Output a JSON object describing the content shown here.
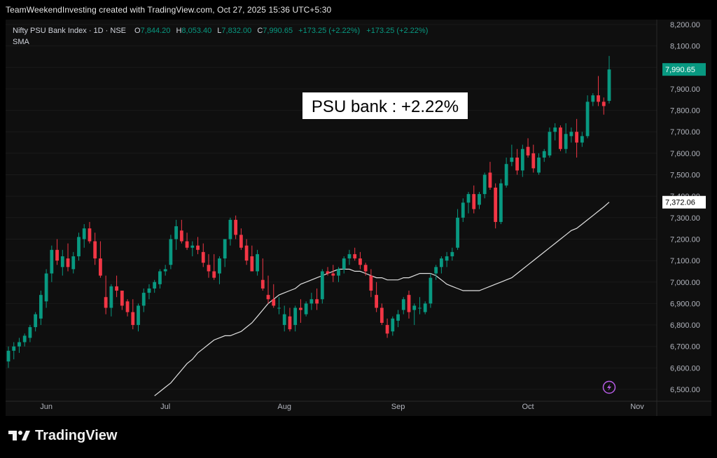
{
  "header": {
    "credit": "TeamWeekendInvesting created with TradingView.com, Oct 27, 2025 15:36 UTC+5:30"
  },
  "legend": {
    "symbol": "Nifty PSU Bank Index · 1D · NSE",
    "o_label": "O",
    "o_value": "7,844.20",
    "h_label": "H",
    "h_value": "8,053.40",
    "l_label": "L",
    "l_value": "7,832.00",
    "c_label": "C",
    "c_value": "7,990.65",
    "change": "+173.25 (+2.22%)",
    "change2": "+173.25 (+2.22%)",
    "indicator": "SMA"
  },
  "annotation": "PSU bank : +2.22%",
  "footer": {
    "brand": "TradingView"
  },
  "colors": {
    "up": "#089981",
    "down": "#f23645",
    "sma": "#e0e0e0",
    "price_badge": "#089981"
  },
  "chart_data": {
    "type": "candlestick",
    "ylim": [
      6450,
      8230
    ],
    "y_ticks": [
      "6,500.00",
      "6,600.00",
      "6,700.00",
      "6,800.00",
      "6,900.00",
      "7,000.00",
      "7,100.00",
      "7,200.00",
      "7,300.00",
      "7,400.00",
      "7,500.00",
      "7,600.00",
      "7,700.00",
      "7,800.00",
      "7,900.00",
      "8,000.00",
      "8,100.00",
      "8,200.00"
    ],
    "x_ticks": [
      "Jun",
      "Jul",
      "Aug",
      "Sep",
      "Oct",
      "Nov"
    ],
    "last_price_label": "7,990.65",
    "sma_label": "7,372.06",
    "candles": [
      [
        6630,
        6700,
        6600,
        6680
      ],
      [
        6680,
        6720,
        6640,
        6700
      ],
      [
        6700,
        6740,
        6670,
        6720
      ],
      [
        6720,
        6760,
        6700,
        6750
      ],
      [
        6740,
        6800,
        6720,
        6790
      ],
      [
        6790,
        6860,
        6770,
        6850
      ],
      [
        6830,
        6960,
        6800,
        6940
      ],
      [
        6910,
        7060,
        6880,
        7040
      ],
      [
        7040,
        7170,
        7000,
        7150
      ],
      [
        7150,
        7200,
        7080,
        7100
      ],
      [
        7070,
        7150,
        7030,
        7120
      ],
      [
        7110,
        7180,
        7050,
        7070
      ],
      [
        7060,
        7140,
        7040,
        7120
      ],
      [
        7120,
        7230,
        7100,
        7210
      ],
      [
        7200,
        7270,
        7160,
        7250
      ],
      [
        7250,
        7280,
        7180,
        7190
      ],
      [
        7190,
        7230,
        7080,
        7110
      ],
      [
        7110,
        7190,
        7020,
        7030
      ],
      [
        6930,
        7030,
        6850,
        6880
      ],
      [
        6880,
        6990,
        6840,
        6980
      ],
      [
        6980,
        7030,
        6930,
        6960
      ],
      [
        6960,
        6960,
        6870,
        6890
      ],
      [
        6910,
        6920,
        6840,
        6860
      ],
      [
        6860,
        6920,
        6780,
        6800
      ],
      [
        6800,
        6900,
        6770,
        6890
      ],
      [
        6890,
        6970,
        6860,
        6950
      ],
      [
        6950,
        6990,
        6920,
        6970
      ],
      [
        6970,
        7010,
        6950,
        7000
      ],
      [
        6990,
        7060,
        6970,
        7050
      ],
      [
        7050,
        7080,
        7030,
        7060
      ],
      [
        7080,
        7220,
        7060,
        7200
      ],
      [
        7200,
        7290,
        7150,
        7260
      ],
      [
        7240,
        7290,
        7180,
        7190
      ],
      [
        7190,
        7230,
        7150,
        7160
      ],
      [
        7160,
        7190,
        7120,
        7170
      ],
      [
        7170,
        7210,
        7130,
        7150
      ],
      [
        7140,
        7180,
        7070,
        7090
      ],
      [
        7080,
        7130,
        7020,
        7050
      ],
      [
        7050,
        7130,
        7010,
        7020
      ],
      [
        7040,
        7120,
        6990,
        7110
      ],
      [
        7110,
        7200,
        7070,
        7200
      ],
      [
        7200,
        7300,
        7170,
        7290
      ],
      [
        7290,
        7310,
        7200,
        7220
      ],
      [
        7220,
        7250,
        7150,
        7160
      ],
      [
        7170,
        7200,
        7080,
        7100
      ],
      [
        7120,
        7170,
        7050,
        7050
      ],
      [
        7050,
        7150,
        7030,
        7130
      ],
      [
        7010,
        7110,
        6960,
        6970
      ],
      [
        6940,
        7030,
        6900,
        6920
      ],
      [
        6920,
        6990,
        6880,
        6890
      ],
      [
        6880,
        6930,
        6850,
        6880
      ],
      [
        6800,
        6890,
        6770,
        6850
      ],
      [
        6840,
        6880,
        6770,
        6780
      ],
      [
        6800,
        6890,
        6770,
        6880
      ],
      [
        6880,
        6920,
        6810,
        6870
      ],
      [
        6850,
        6910,
        6840,
        6900
      ],
      [
        6900,
        6950,
        6870,
        6920
      ],
      [
        6920,
        6970,
        6870,
        6900
      ],
      [
        6920,
        7060,
        6900,
        7050
      ],
      [
        7050,
        7070,
        7030,
        7040
      ],
      [
        7040,
        7080,
        7000,
        7030
      ],
      [
        7030,
        7070,
        7000,
        7060
      ],
      [
        7060,
        7120,
        7040,
        7110
      ],
      [
        7110,
        7150,
        7080,
        7130
      ],
      [
        7130,
        7160,
        7100,
        7110
      ],
      [
        7110,
        7140,
        7060,
        7080
      ],
      [
        7080,
        7090,
        7030,
        7050
      ],
      [
        7030,
        7060,
        6930,
        6960
      ],
      [
        6940,
        7000,
        6860,
        6880
      ],
      [
        6880,
        6900,
        6800,
        6810
      ],
      [
        6800,
        6830,
        6740,
        6760
      ],
      [
        6770,
        6840,
        6750,
        6830
      ],
      [
        6820,
        6870,
        6790,
        6850
      ],
      [
        6870,
        6930,
        6850,
        6920
      ],
      [
        6940,
        6960,
        6830,
        6860
      ],
      [
        6870,
        6900,
        6800,
        6890
      ],
      [
        6880,
        6930,
        6850,
        6880
      ],
      [
        6860,
        6910,
        6850,
        6900
      ],
      [
        6900,
        7040,
        6880,
        7020
      ],
      [
        7040,
        7080,
        7010,
        7070
      ],
      [
        7070,
        7120,
        7040,
        7110
      ],
      [
        7100,
        7140,
        7070,
        7120
      ],
      [
        7120,
        7160,
        7100,
        7140
      ],
      [
        7160,
        7340,
        7150,
        7300
      ],
      [
        7300,
        7390,
        7280,
        7370
      ],
      [
        7370,
        7420,
        7320,
        7410
      ],
      [
        7410,
        7450,
        7320,
        7340
      ],
      [
        7360,
        7420,
        7340,
        7410
      ],
      [
        7410,
        7510,
        7390,
        7500
      ],
      [
        7510,
        7560,
        7430,
        7440
      ],
      [
        7440,
        7460,
        7250,
        7280
      ],
      [
        7280,
        7480,
        7270,
        7460
      ],
      [
        7450,
        7580,
        7440,
        7550
      ],
      [
        7560,
        7640,
        7540,
        7580
      ],
      [
        7580,
        7620,
        7500,
        7520
      ],
      [
        7520,
        7640,
        7490,
        7620
      ],
      [
        7630,
        7670,
        7580,
        7590
      ],
      [
        7600,
        7640,
        7510,
        7530
      ],
      [
        7510,
        7600,
        7500,
        7580
      ],
      [
        7580,
        7620,
        7560,
        7610
      ],
      [
        7590,
        7720,
        7580,
        7700
      ],
      [
        7700,
        7740,
        7660,
        7720
      ],
      [
        7720,
        7730,
        7610,
        7620
      ],
      [
        7620,
        7740,
        7600,
        7690
      ],
      [
        7680,
        7720,
        7650,
        7700
      ],
      [
        7700,
        7760,
        7580,
        7650
      ],
      [
        7650,
        7700,
        7630,
        7680
      ],
      [
        7680,
        7870,
        7670,
        7840
      ],
      [
        7840,
        7880,
        7820,
        7870
      ],
      [
        7870,
        7960,
        7820,
        7840
      ],
      [
        7840,
        7860,
        7780,
        7820
      ],
      [
        7844.2,
        8053.4,
        7832,
        7990.65
      ]
    ],
    "sma": [
      6470,
      6490,
      6510,
      6530,
      6560,
      6590,
      6620,
      6640,
      6670,
      6690,
      6710,
      6730,
      6740,
      6750,
      6750,
      6760,
      6770,
      6790,
      6810,
      6840,
      6870,
      6900,
      6920,
      6940,
      6950,
      6960,
      6970,
      6990,
      7000,
      7010,
      7020,
      7030,
      7040,
      7050,
      7060,
      7060,
      7060,
      7050,
      7050,
      7040,
      7030,
      7020,
      7020,
      7010,
      7010,
      7010,
      7020,
      7020,
      7030,
      7040,
      7040,
      7040,
      7030,
      7010,
      6990,
      6980,
      6970,
      6960,
      6960,
      6960,
      6960,
      6970,
      6980,
      6990,
      7000,
      7010,
      7020,
      7040,
      7060,
      7080,
      7100,
      7120,
      7140,
      7160,
      7180,
      7200,
      7220,
      7240,
      7250,
      7270,
      7290,
      7310,
      7330,
      7350,
      7372.06
    ]
  }
}
